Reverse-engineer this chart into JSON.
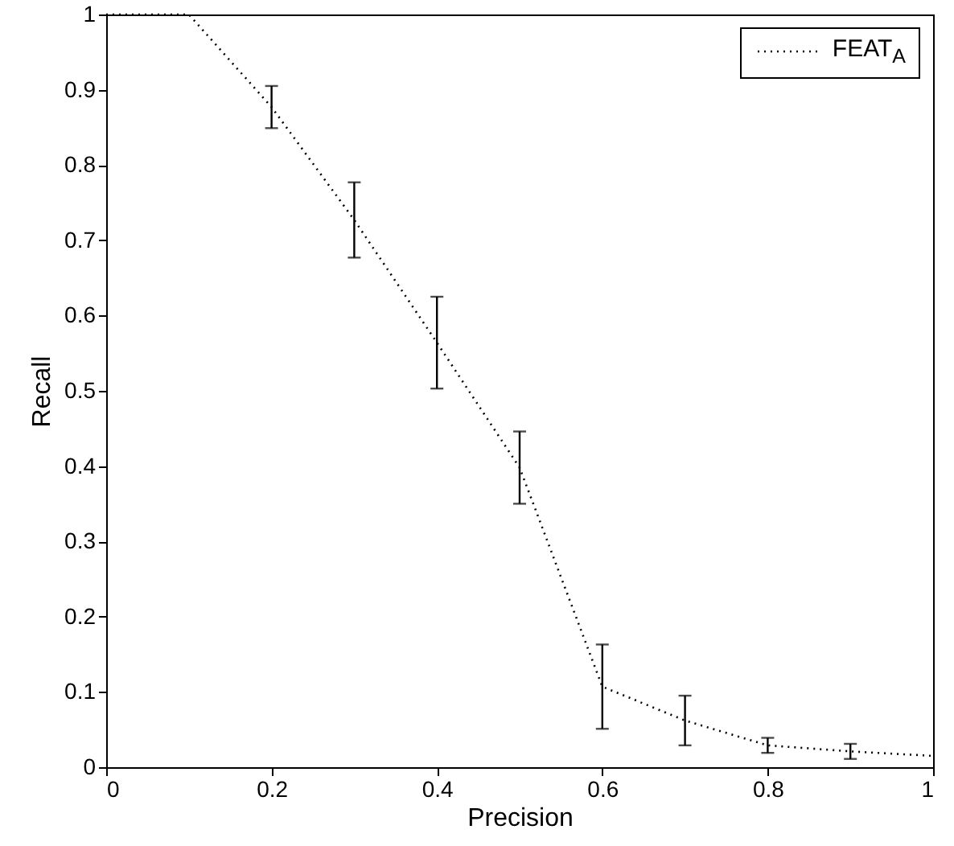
{
  "chart_data": {
    "type": "line",
    "xlabel": "Precision",
    "ylabel": "Recall",
    "x": [
      0,
      0.1,
      0.2,
      0.3,
      0.4,
      0.5,
      0.6,
      0.7,
      0.8,
      0.9,
      1
    ],
    "series": [
      {
        "name": "FEAT$_{A}$",
        "color": "#000000",
        "values": [
          1,
          1,
          0.877,
          0.727,
          0.564,
          0.398,
          0.107,
          0.062,
          0.029,
          0.021,
          0.015
        ],
        "errors": [
          null,
          null,
          0.028,
          0.05,
          0.061,
          0.048,
          0.056,
          0.033,
          0.01,
          0.01,
          null
        ]
      }
    ],
    "line_style": "dotted",
    "legend": "top right",
    "xlim": [
      0,
      1
    ],
    "ylim": [
      0,
      1
    ],
    "xticks": [
      0,
      0.2,
      0.4,
      0.6,
      0.8,
      1
    ],
    "yticks": [
      0,
      0.1,
      0.2,
      0.3,
      0.4,
      0.5,
      0.6,
      0.7,
      0.8,
      0.9,
      1
    ]
  }
}
